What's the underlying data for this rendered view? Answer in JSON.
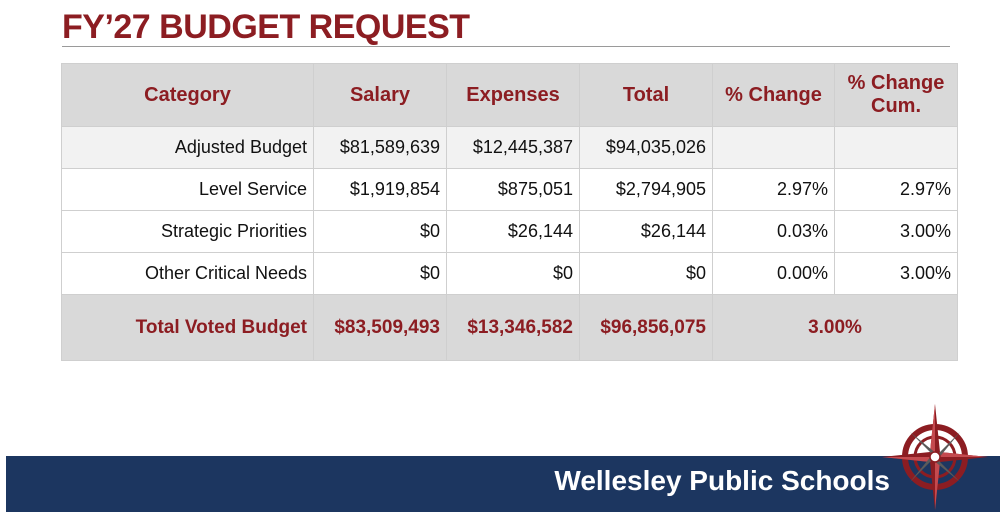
{
  "title": "FY’27 BUDGET REQUEST",
  "colors": {
    "brand_red": "#8c1d22",
    "navy": "#1c3660",
    "header_gray": "#d9d9d9"
  },
  "table": {
    "headers": [
      "Category",
      "Salary",
      "Expenses",
      "Total",
      "% Change",
      "% Change Cum."
    ],
    "rows": [
      [
        "Adjusted Budget",
        "$81,589,639",
        "$12,445,387",
        "$94,035,026",
        "",
        ""
      ],
      [
        "Level Service",
        "$1,919,854",
        "$875,051",
        "$2,794,905",
        "2.97%",
        "2.97%"
      ],
      [
        "Strategic Priorities",
        "$0",
        "$26,144",
        "$26,144",
        "0.03%",
        "3.00%"
      ],
      [
        "Other Critical Needs",
        "$0",
        "$0",
        "$0",
        "0.00%",
        "3.00%"
      ]
    ],
    "total": {
      "label": "Total Voted Budget",
      "salary": "$83,509,493",
      "expenses": "$13,346,582",
      "total": "$96,856,075",
      "pct": "3.00%"
    }
  },
  "footer": {
    "org_name": "Wellesley Public Schools",
    "logo_icon": "compass-rose-icon"
  }
}
